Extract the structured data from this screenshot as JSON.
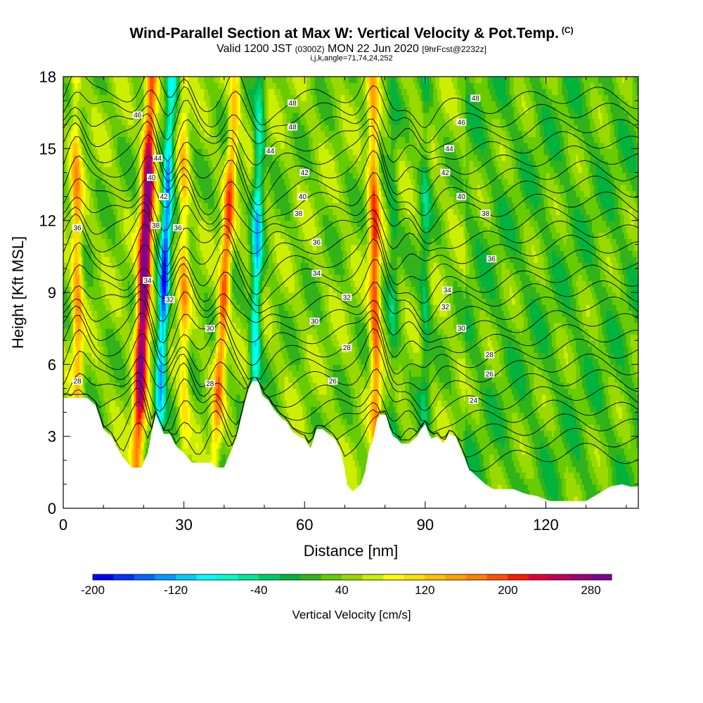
{
  "header": {
    "title": "Wind-Parallel Section at Max W: Vertical Velocity & Pot.Temp.",
    "copyright": "(C)",
    "valid_prefix": "Valid 1200 JST",
    "valid_utc": "(0300Z)",
    "valid_date": "MON 22 Jun 2020",
    "forecast": "[9hrFcst@2232z]",
    "params": "i,j,k,angle=71,74,24,252"
  },
  "chart_data": {
    "type": "heatmap",
    "xlabel": "Distance [nm]",
    "ylabel": "Height [Kft MSL]",
    "xlim": [
      0,
      143
    ],
    "ylim": [
      0,
      18
    ],
    "x_ticks": [
      "0",
      "30",
      "60",
      "90",
      "120"
    ],
    "x_tick_values": [
      0,
      30,
      60,
      90,
      120
    ],
    "y_ticks": [
      "0",
      "3",
      "6",
      "9",
      "12",
      "15",
      "18"
    ],
    "y_tick_values": [
      0,
      3,
      6,
      9,
      12,
      15,
      18
    ],
    "colorbar": {
      "label": "Vertical Velocity [cm/s]",
      "min": -200,
      "max": 300,
      "step": 20,
      "tick_labels": [
        "-200",
        "-120",
        "-40",
        "40",
        "120",
        "200",
        "280"
      ],
      "tick_values": [
        -200,
        -120,
        -40,
        40,
        120,
        200,
        280
      ],
      "colors": [
        "#0000ff",
        "#0033ff",
        "#0066ff",
        "#0099ff",
        "#00ccff",
        "#00ffff",
        "#00ffcc",
        "#00e699",
        "#00cc66",
        "#00b33c",
        "#33b31a",
        "#66cc00",
        "#99d900",
        "#ccee00",
        "#ffff00",
        "#ffe000",
        "#ffc000",
        "#ffa000",
        "#ff8000",
        "#ff5000",
        "#ff1a00",
        "#e0003c",
        "#c0005a",
        "#a00078",
        "#800090"
      ]
    },
    "series": [
      {
        "name": "Vertical Velocity",
        "updraft_cores": [
          {
            "base_x": 18,
            "top_x": 22,
            "peak": 290
          },
          {
            "base_x": 37,
            "top_x": 43,
            "peak": 150
          },
          {
            "base_x": 78,
            "top_x": 77,
            "peak": 160
          },
          {
            "base_x": 4,
            "top_x": 3,
            "peak": 110
          },
          {
            "base_x": 30,
            "top_x": 30,
            "peak": 90
          }
        ],
        "downdraft_cores": [
          {
            "base_x": 23,
            "top_x": 27,
            "peak": -200
          },
          {
            "base_x": 47,
            "top_x": 49,
            "peak": -140
          },
          {
            "base_x": 90,
            "top_x": 90,
            "peak": -60
          },
          {
            "base_x": 82,
            "top_x": 82,
            "peak": -50
          }
        ]
      },
      {
        "name": "Potential Temperature",
        "contour_levels": [
          24,
          25,
          26,
          27,
          28,
          29,
          30,
          31,
          32,
          33,
          34,
          35,
          36,
          37,
          38,
          39,
          40,
          41,
          42,
          43,
          44,
          45,
          46,
          47,
          48
        ]
      }
    ],
    "contour_labels": [
      {
        "x": 3.5,
        "y": 11.7,
        "text": "36"
      },
      {
        "x": 3.5,
        "y": 5.3,
        "text": "28"
      },
      {
        "x": 18.5,
        "y": 16.4,
        "text": "46"
      },
      {
        "x": 23.5,
        "y": 14.6,
        "text": "44"
      },
      {
        "x": 22.0,
        "y": 13.8,
        "text": "40"
      },
      {
        "x": 25.0,
        "y": 13.0,
        "text": "42"
      },
      {
        "x": 23.0,
        "y": 11.8,
        "text": "38"
      },
      {
        "x": 28.5,
        "y": 11.7,
        "text": "36"
      },
      {
        "x": 21.0,
        "y": 9.5,
        "text": "34"
      },
      {
        "x": 26.5,
        "y": 8.7,
        "text": "32"
      },
      {
        "x": 36.5,
        "y": 7.5,
        "text": "30"
      },
      {
        "x": 36.5,
        "y": 5.2,
        "text": "28"
      },
      {
        "x": 57.0,
        "y": 16.9,
        "text": "48"
      },
      {
        "x": 57.0,
        "y": 15.9,
        "text": "48"
      },
      {
        "x": 51.5,
        "y": 14.9,
        "text": "44"
      },
      {
        "x": 60.0,
        "y": 14.0,
        "text": "42"
      },
      {
        "x": 59.5,
        "y": 13.0,
        "text": "40"
      },
      {
        "x": 58.5,
        "y": 12.3,
        "text": "38"
      },
      {
        "x": 63.0,
        "y": 11.1,
        "text": "36"
      },
      {
        "x": 63.0,
        "y": 9.8,
        "text": "34"
      },
      {
        "x": 70.5,
        "y": 8.8,
        "text": "32"
      },
      {
        "x": 62.5,
        "y": 7.8,
        "text": "30"
      },
      {
        "x": 70.5,
        "y": 6.7,
        "text": "28"
      },
      {
        "x": 67.0,
        "y": 5.3,
        "text": "26"
      },
      {
        "x": 102.5,
        "y": 17.1,
        "text": "48"
      },
      {
        "x": 99.0,
        "y": 16.1,
        "text": "46"
      },
      {
        "x": 96.0,
        "y": 15.0,
        "text": "44"
      },
      {
        "x": 95.0,
        "y": 14.0,
        "text": "42"
      },
      {
        "x": 99.0,
        "y": 13.0,
        "text": "40"
      },
      {
        "x": 105.0,
        "y": 12.3,
        "text": "38"
      },
      {
        "x": 106.5,
        "y": 10.4,
        "text": "36"
      },
      {
        "x": 95.5,
        "y": 9.1,
        "text": "34"
      },
      {
        "x": 95.0,
        "y": 8.4,
        "text": "32"
      },
      {
        "x": 99.0,
        "y": 7.5,
        "text": "30"
      },
      {
        "x": 106.0,
        "y": 6.4,
        "text": "28"
      },
      {
        "x": 106.0,
        "y": 5.6,
        "text": "26"
      },
      {
        "x": 102.0,
        "y": 4.5,
        "text": "24"
      }
    ],
    "terrain": [
      [
        0,
        4.6
      ],
      [
        3,
        4.6
      ],
      [
        6,
        4.6
      ],
      [
        8,
        4.3
      ],
      [
        10,
        3.3
      ],
      [
        12,
        3.0
      ],
      [
        13.5,
        2.5
      ],
      [
        15,
        2.1
      ],
      [
        16,
        1.9
      ],
      [
        17,
        1.7
      ],
      [
        19.5,
        1.7
      ],
      [
        21,
        2.3
      ],
      [
        22,
        3.2
      ],
      [
        23,
        3.9
      ],
      [
        24,
        3.5
      ],
      [
        25,
        3.1
      ],
      [
        26.5,
        3.1
      ],
      [
        28,
        2.6
      ],
      [
        30,
        2.3
      ],
      [
        32,
        1.9
      ],
      [
        34,
        1.9
      ],
      [
        37,
        1.9
      ],
      [
        38,
        1.7
      ],
      [
        40,
        1.7
      ],
      [
        41,
        2.1
      ],
      [
        42,
        2.5
      ],
      [
        43,
        2.9
      ],
      [
        44,
        3.6
      ],
      [
        45,
        4.3
      ],
      [
        46,
        4.9
      ],
      [
        47,
        5.3
      ],
      [
        48.5,
        5.3
      ],
      [
        49.5,
        4.7
      ],
      [
        51,
        4.5
      ],
      [
        52.5,
        4.1
      ],
      [
        54,
        3.8
      ],
      [
        55.5,
        3.6
      ],
      [
        57,
        3.2
      ],
      [
        58.5,
        3.0
      ],
      [
        60,
        2.9
      ],
      [
        61.5,
        2.5
      ],
      [
        63,
        3.3
      ],
      [
        64.5,
        3.3
      ],
      [
        66,
        3.1
      ],
      [
        67.5,
        2.9
      ],
      [
        69,
        2.4
      ],
      [
        70,
        1.6
      ],
      [
        70.5,
        1.0
      ],
      [
        72,
        0.7
      ],
      [
        74,
        1.0
      ],
      [
        75,
        1.5
      ],
      [
        76,
        2.4
      ],
      [
        77,
        2.8
      ],
      [
        78,
        3.7
      ],
      [
        79,
        3.9
      ],
      [
        80.5,
        3.9
      ],
      [
        81,
        3.4
      ],
      [
        82,
        3.0
      ],
      [
        83,
        2.9
      ],
      [
        84,
        2.7
      ],
      [
        86,
        2.7
      ],
      [
        88,
        3.0
      ],
      [
        89,
        3.3
      ],
      [
        90,
        3.5
      ],
      [
        91.5,
        2.9
      ],
      [
        93,
        3.0
      ],
      [
        94.5,
        2.7
      ],
      [
        96,
        3.1
      ],
      [
        97.5,
        3.0
      ],
      [
        99,
        2.4
      ],
      [
        100,
        2.0
      ],
      [
        101,
        1.6
      ],
      [
        103,
        1.3
      ],
      [
        105,
        1.0
      ],
      [
        107,
        0.8
      ],
      [
        110,
        0.8
      ],
      [
        112,
        0.8
      ],
      [
        115,
        0.6
      ],
      [
        118,
        0.5
      ],
      [
        121,
        0.3
      ],
      [
        124,
        0.3
      ],
      [
        127,
        0.3
      ],
      [
        130,
        0.3
      ],
      [
        133,
        0.6
      ],
      [
        136,
        0.9
      ],
      [
        139,
        1.0
      ],
      [
        141,
        0.9
      ],
      [
        143,
        0.9
      ]
    ]
  }
}
